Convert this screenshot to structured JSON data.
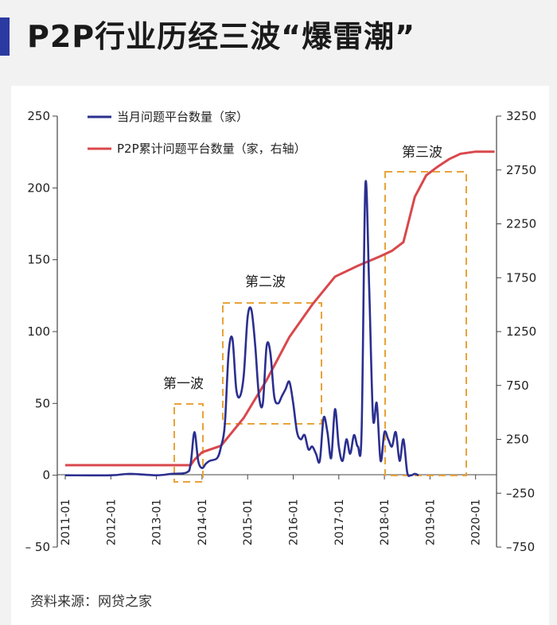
{
  "title": "P2P行业历经三波“爆雷潮”",
  "source": "资料来源：网贷之家",
  "colors": {
    "monthly": "#2b2f8f",
    "cumulative": "#d9484c",
    "accent": "#2b3aa0",
    "box": "#e8a33a"
  },
  "chart_data": {
    "type": "line",
    "x_ticks": [
      "2011-01",
      "2012-01",
      "2013-01",
      "2014-01",
      "2015-01",
      "2016-01",
      "2017-01",
      "2018-01",
      "2019-01",
      "2020-01"
    ],
    "y_left": {
      "ylim": [
        -50,
        250
      ],
      "ticks": [
        -50,
        0,
        50,
        100,
        150,
        200,
        250
      ]
    },
    "y_right": {
      "ylim": [
        -750,
        3250
      ],
      "ticks": [
        -750,
        -250,
        250,
        750,
        1250,
        1750,
        2250,
        2750,
        3250
      ]
    },
    "series": [
      {
        "name": "当月问题平台数量（家）",
        "axis": "left",
        "points": [
          [
            "2011-01",
            0
          ],
          [
            "2012-01",
            0
          ],
          [
            "2012-06",
            1
          ],
          [
            "2013-01",
            0
          ],
          [
            "2013-05",
            1
          ],
          [
            "2013-09",
            2
          ],
          [
            "2013-10",
            8
          ],
          [
            "2013-11",
            30
          ],
          [
            "2013-12",
            10
          ],
          [
            "2014-01",
            5
          ],
          [
            "2014-02",
            8
          ],
          [
            "2014-03",
            10
          ],
          [
            "2014-05",
            12
          ],
          [
            "2014-06",
            20
          ],
          [
            "2014-07",
            35
          ],
          [
            "2014-08",
            85
          ],
          [
            "2014-09",
            95
          ],
          [
            "2014-10",
            60
          ],
          [
            "2014-11",
            55
          ],
          [
            "2014-12",
            70
          ],
          [
            "2015-01",
            110
          ],
          [
            "2015-02",
            115
          ],
          [
            "2015-03",
            90
          ],
          [
            "2015-04",
            55
          ],
          [
            "2015-05",
            50
          ],
          [
            "2015-06",
            90
          ],
          [
            "2015-07",
            85
          ],
          [
            "2015-08",
            55
          ],
          [
            "2015-09",
            50
          ],
          [
            "2015-10",
            55
          ],
          [
            "2015-11",
            60
          ],
          [
            "2015-12",
            65
          ],
          [
            "2016-01",
            50
          ],
          [
            "2016-02",
            30
          ],
          [
            "2016-03",
            25
          ],
          [
            "2016-04",
            28
          ],
          [
            "2016-05",
            18
          ],
          [
            "2016-06",
            20
          ],
          [
            "2016-07",
            15
          ],
          [
            "2016-08",
            10
          ],
          [
            "2016-09",
            40
          ],
          [
            "2016-10",
            30
          ],
          [
            "2016-11",
            12
          ],
          [
            "2016-12",
            46
          ],
          [
            "2017-01",
            20
          ],
          [
            "2017-02",
            10
          ],
          [
            "2017-03",
            25
          ],
          [
            "2017-04",
            15
          ],
          [
            "2017-05",
            28
          ],
          [
            "2017-06",
            20
          ],
          [
            "2017-07",
            30
          ],
          [
            "2017-08",
            202
          ],
          [
            "2017-09",
            130
          ],
          [
            "2017-10",
            40
          ],
          [
            "2017-11",
            50
          ],
          [
            "2017-12",
            10
          ],
          [
            "2018-01",
            30
          ],
          [
            "2018-02",
            25
          ],
          [
            "2018-03",
            20
          ],
          [
            "2018-04",
            30
          ],
          [
            "2018-05",
            10
          ],
          [
            "2018-06",
            25
          ],
          [
            "2018-07",
            2
          ],
          [
            "2018-08",
            0
          ],
          [
            "2018-09",
            1
          ],
          [
            "2018-10",
            0
          ]
        ]
      },
      {
        "name": "P2P累计问题平台数量（家，右轴）",
        "axis": "right",
        "points": [
          [
            "2011-01",
            10
          ],
          [
            "2013-10",
            10
          ],
          [
            "2013-11",
            60
          ],
          [
            "2014-01",
            130
          ],
          [
            "2014-06",
            190
          ],
          [
            "2014-12",
            450
          ],
          [
            "2015-06",
            800
          ],
          [
            "2015-12",
            1200
          ],
          [
            "2016-06",
            1500
          ],
          [
            "2016-12",
            1760
          ],
          [
            "2017-06",
            1860
          ],
          [
            "2017-12",
            1950
          ],
          [
            "2018-03",
            2000
          ],
          [
            "2018-06",
            2080
          ],
          [
            "2018-09",
            2500
          ],
          [
            "2018-12",
            2700
          ],
          [
            "2019-03",
            2780
          ],
          [
            "2019-06",
            2850
          ],
          [
            "2019-09",
            2900
          ],
          [
            "2020-01",
            2920
          ],
          [
            "2020-06",
            2920
          ]
        ]
      }
    ],
    "annotations": [
      "第一波",
      "第二波",
      "第三波"
    ],
    "legend": "top-left"
  }
}
